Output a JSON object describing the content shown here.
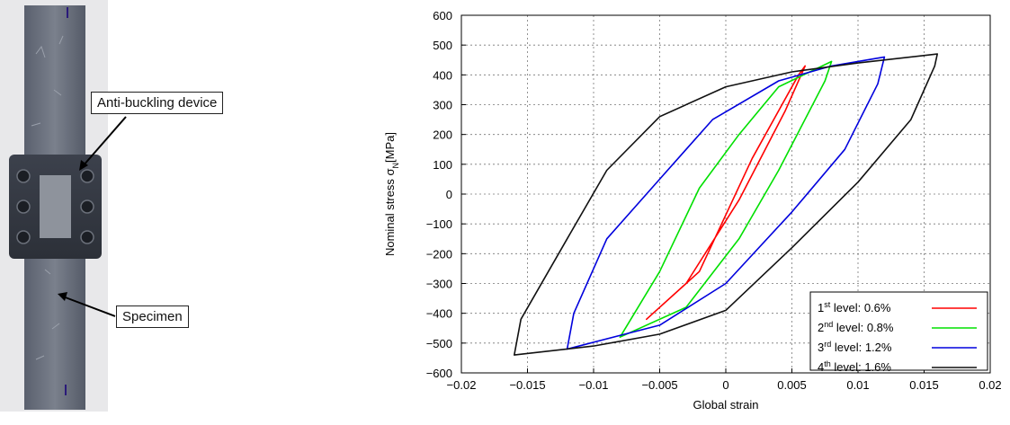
{
  "photo": {
    "callouts": [
      "Anti-buckling device",
      "Specimen"
    ]
  },
  "chart_data": {
    "type": "line",
    "xlabel": "Global strain",
    "ylabel": "Nominal stress σ",
    "ylabel_sub": "N",
    "ylabel_unit": "[MPa]",
    "xlim": [
      -0.02,
      0.02
    ],
    "ylim": [
      -600,
      600
    ],
    "xticks": [
      "−0.02",
      "−0.015",
      "−0.01",
      "−0.005",
      "0",
      "0.005",
      "0.01",
      "0.015",
      "0.02"
    ],
    "xtick_values": [
      -0.02,
      -0.015,
      -0.01,
      -0.005,
      0,
      0.005,
      0.01,
      0.015,
      0.02
    ],
    "yticks": [
      "600",
      "500",
      "400",
      "300",
      "200",
      "100",
      "0",
      "−100",
      "−200",
      "−300",
      "−400",
      "−500",
      "−600"
    ],
    "ytick_values": [
      600,
      500,
      400,
      300,
      200,
      100,
      0,
      -100,
      -200,
      -300,
      -400,
      -500,
      -600
    ],
    "grid": true,
    "legend_position": "bottom-right",
    "series": [
      {
        "name": "1st level: 0.6%",
        "legend_num": "1",
        "legend_sup": "st",
        "legend_rest": " level: 0.6%",
        "color": "#ff0000",
        "x": [
          -0.006,
          -0.002,
          0.002,
          0.0055,
          0.006,
          0.0045,
          0.001,
          -0.003,
          -0.006
        ],
        "y": [
          -420,
          -260,
          120,
          400,
          430,
          280,
          -20,
          -300,
          -420
        ]
      },
      {
        "name": "2nd level: 0.8%",
        "legend_num": "2",
        "legend_sup": "nd",
        "legend_rest": " level: 0.8%",
        "color": "#00e000",
        "x": [
          -0.008,
          -0.005,
          -0.002,
          0.001,
          0.004,
          0.008,
          0.0075,
          0.004,
          0.001,
          -0.003,
          -0.008
        ],
        "y": [
          -480,
          -260,
          20,
          200,
          360,
          445,
          380,
          80,
          -150,
          -380,
          -480
        ]
      },
      {
        "name": "3rd level: 1.2%",
        "legend_num": "3",
        "legend_sup": "rd",
        "legend_rest": " level: 1.2%",
        "color": "#0000dd",
        "x": [
          -0.012,
          -0.0115,
          -0.009,
          -0.005,
          -0.001,
          0.004,
          0.008,
          0.012,
          0.0115,
          0.009,
          0.005,
          0.0,
          -0.005,
          -0.012
        ],
        "y": [
          -520,
          -400,
          -150,
          50,
          250,
          380,
          430,
          460,
          370,
          150,
          -60,
          -300,
          -440,
          -520
        ]
      },
      {
        "name": "4th level: 1.6%",
        "legend_num": "4",
        "legend_sup": "th",
        "legend_rest": " level: 1.6%",
        "color": "#111111",
        "x": [
          -0.016,
          -0.0155,
          -0.012,
          -0.009,
          -0.005,
          0.0,
          0.005,
          0.01,
          0.016,
          0.0158,
          0.014,
          0.01,
          0.005,
          0.0,
          -0.005,
          -0.01,
          -0.016
        ],
        "y": [
          -540,
          -420,
          -150,
          80,
          260,
          360,
          410,
          440,
          470,
          430,
          250,
          40,
          -180,
          -390,
          -470,
          -510,
          -540
        ]
      }
    ]
  }
}
